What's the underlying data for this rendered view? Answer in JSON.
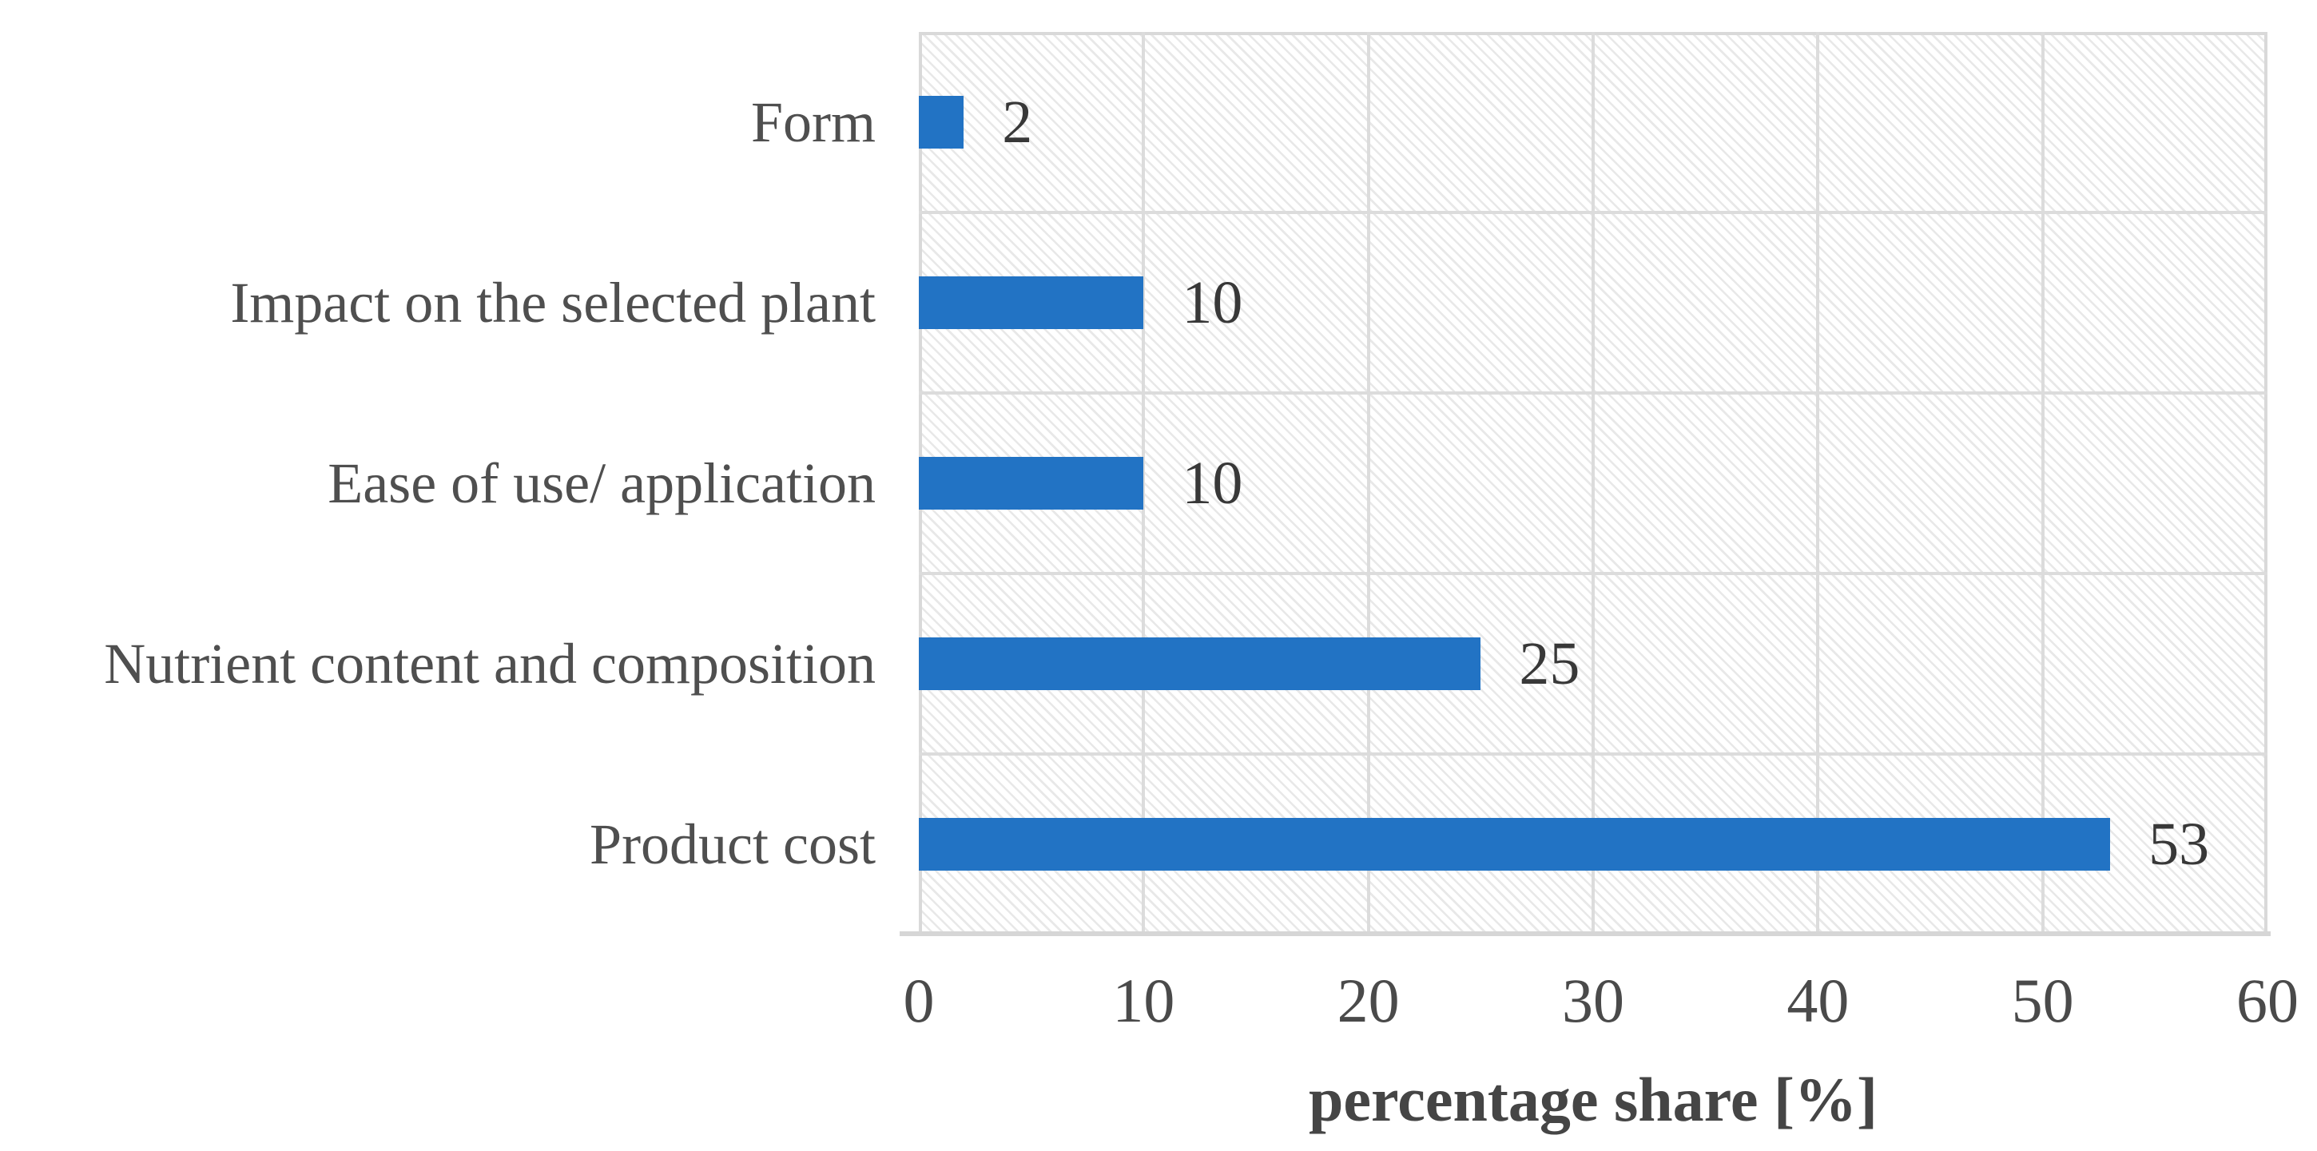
{
  "chart_data": {
    "type": "bar",
    "orientation": "horizontal",
    "title": "",
    "categories": [
      "Form",
      "Impact on the selected plant",
      "Ease of use/ application",
      "Nutrient content and composition",
      "Product cost"
    ],
    "values": [
      2,
      10,
      10,
      25,
      53
    ],
    "data_labels": [
      "2",
      "10",
      "10",
      "25",
      "53"
    ],
    "xlabel": "percentage share [%]",
    "ylabel": "",
    "xlim": [
      0,
      60
    ],
    "x_ticks": [
      0,
      10,
      20,
      30,
      40,
      50,
      60
    ],
    "grid": "on",
    "legend": "none",
    "bar_color": "#2273c4",
    "gridline_color": "#dcdcdc",
    "plot_border_color": "#d9d9d9",
    "plot_background": "white with light gray diagonal hatch pattern",
    "label_text_color": "#4f4f4f",
    "value_text_color": "#383838"
  }
}
